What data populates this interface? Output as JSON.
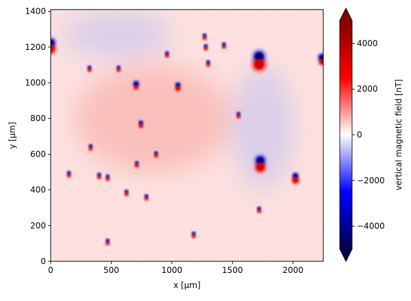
{
  "chart_data": {
    "type": "heatmap",
    "title": "",
    "xlabel": "x [µm]",
    "ylabel": "y [µm]",
    "xlim": [
      0,
      2250
    ],
    "ylim": [
      0,
      1410
    ],
    "xticks": [
      0,
      500,
      1000,
      1500,
      2000
    ],
    "yticks": [
      0,
      200,
      400,
      600,
      800,
      1000,
      1200,
      1400
    ],
    "xtick_labels": [
      "0",
      "500",
      "1000",
      "1500",
      "2000"
    ],
    "ytick_labels": [
      "0",
      "200",
      "400",
      "600",
      "800",
      "1000",
      "1200",
      "1400"
    ],
    "colorbar": {
      "label": "vertical magnetic field [nT]",
      "range": [
        -5000,
        5000
      ],
      "ticks": [
        -4000,
        -2000,
        0,
        2000,
        4000
      ],
      "tick_labels": [
        "−4000",
        "−2000",
        "0",
        "2000",
        "4000"
      ],
      "extend": "both",
      "colormap": "seismic"
    },
    "dipoles": [
      {
        "x": 1720,
        "y": 1130,
        "neg_r": 75,
        "pos_r": 80,
        "note": "large top pair"
      },
      {
        "x": 1730,
        "y": 550,
        "neg_r": 65,
        "pos_r": 65,
        "note": "middle pair"
      },
      {
        "x": 0,
        "y": 1210,
        "neg_r": 60,
        "pos_r": 60,
        "note": "left edge pair"
      },
      {
        "x": 705,
        "y": 985,
        "neg_r": 40,
        "pos_r": 30
      },
      {
        "x": 745,
        "y": 770,
        "neg_r": 30,
        "pos_r": 30
      },
      {
        "x": 2020,
        "y": 470,
        "neg_r": 40,
        "pos_r": 45
      },
      {
        "x": 1050,
        "y": 980,
        "neg_r": 35,
        "pos_r": 35
      },
      {
        "x": 1720,
        "y": 290,
        "neg_r": 25,
        "pos_r": 25
      },
      {
        "x": 330,
        "y": 640,
        "neg_r": 14,
        "pos_r": 14
      },
      {
        "x": 150,
        "y": 490,
        "neg_r": 16,
        "pos_r": 16
      },
      {
        "x": 470,
        "y": 470,
        "neg_r": 12,
        "pos_r": 12
      },
      {
        "x": 710,
        "y": 545,
        "neg_r": 18,
        "pos_r": 18
      },
      {
        "x": 625,
        "y": 385,
        "neg_r": 12,
        "pos_r": 12
      },
      {
        "x": 790,
        "y": 360,
        "neg_r": 12,
        "pos_r": 12
      },
      {
        "x": 1180,
        "y": 150,
        "neg_r": 12,
        "pos_r": 12
      },
      {
        "x": 470,
        "y": 110,
        "neg_r": 12,
        "pos_r": 12
      },
      {
        "x": 2240,
        "y": 1130,
        "neg_r": 50,
        "pos_r": 40
      },
      {
        "x": 1270,
        "y": 1260,
        "neg_r": 10,
        "pos_r": 10
      },
      {
        "x": 1430,
        "y": 1210,
        "neg_r": 10,
        "pos_r": 10
      },
      {
        "x": 960,
        "y": 1160,
        "neg_r": 9,
        "pos_r": 9
      },
      {
        "x": 1300,
        "y": 1110,
        "neg_r": 9,
        "pos_r": 9
      },
      {
        "x": 1280,
        "y": 1200,
        "neg_r": 9,
        "pos_r": 9
      },
      {
        "x": 1550,
        "y": 820,
        "neg_r": 10,
        "pos_r": 10
      },
      {
        "x": 320,
        "y": 1080,
        "neg_r": 9,
        "pos_r": 9
      },
      {
        "x": 560,
        "y": 1080,
        "neg_r": 9,
        "pos_r": 9
      },
      {
        "x": 870,
        "y": 600,
        "neg_r": 9,
        "pos_r": 9
      },
      {
        "x": 400,
        "y": 480,
        "neg_r": 9,
        "pos_r": 9
      }
    ],
    "broad_regions": [
      {
        "x": 850,
        "y": 800,
        "rx": 650,
        "ry": 300,
        "sign": "positive",
        "note": "pink background"
      },
      {
        "x": 1750,
        "y": 750,
        "rx": 250,
        "ry": 350,
        "sign": "negative",
        "note": "blue tail below top dipole"
      },
      {
        "x": 550,
        "y": 1270,
        "rx": 450,
        "ry": 130,
        "sign": "negative",
        "note": "blue band at top"
      }
    ]
  }
}
